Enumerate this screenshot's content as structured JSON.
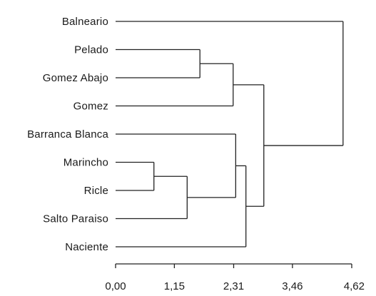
{
  "dendrogram": {
    "type": "dendrogram",
    "orientation": "horizontal",
    "leaves": [
      "Balneario",
      "Pelado",
      "Gomez Abajo",
      "Gomez",
      "Barranca Blanca",
      "Marincho",
      "Ricle",
      "Salto Paraiso",
      "Naciente"
    ],
    "merges": [
      {
        "id": "m1",
        "children": [
          "Marincho",
          "Ricle"
        ],
        "height": 0.75
      },
      {
        "id": "m2",
        "children": [
          "m1",
          "Salto Paraiso"
        ],
        "height": 1.4
      },
      {
        "id": "m3",
        "children": [
          "Pelado",
          "Gomez Abajo"
        ],
        "height": 1.65
      },
      {
        "id": "m4",
        "children": [
          "m3",
          "Gomez"
        ],
        "height": 2.3
      },
      {
        "id": "m5",
        "children": [
          "Barranca Blanca",
          "m2"
        ],
        "height": 2.35
      },
      {
        "id": "m6",
        "children": [
          "m5",
          "Naciente"
        ],
        "height": 2.55
      },
      {
        "id": "m7",
        "children": [
          "m4",
          "m6"
        ],
        "height": 2.9
      },
      {
        "id": "m8",
        "children": [
          "Balneario",
          "m7"
        ],
        "height": 4.45
      }
    ],
    "axis": {
      "range": [
        0,
        4.62
      ],
      "ticks": [
        0,
        1.15,
        2.31,
        3.46,
        4.62
      ],
      "tick_labels": [
        "0,00",
        "1,15",
        "2,31",
        "3,46",
        "4,62"
      ]
    }
  }
}
